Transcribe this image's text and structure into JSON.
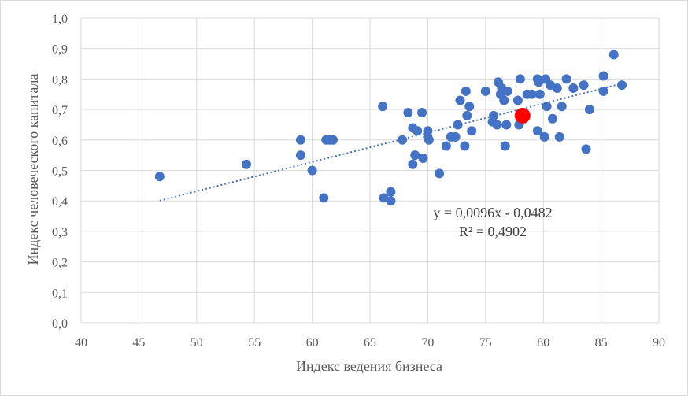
{
  "chart_data": {
    "type": "scatter",
    "xlabel": "Индекс ведения бизнеса",
    "ylabel": "Индекс человеческого капитала",
    "xlim": [
      40,
      90
    ],
    "ylim": [
      0,
      1
    ],
    "x_ticks": [
      "40",
      "45",
      "50",
      "55",
      "60",
      "65",
      "70",
      "75",
      "80",
      "85",
      "90"
    ],
    "y_ticks": [
      "0,0",
      "0,1",
      "0,2",
      "0,3",
      "0,4",
      "0,5",
      "0,6",
      "0,7",
      "0,8",
      "0,9",
      "1,0"
    ],
    "grid": true,
    "colors": {
      "points": "#4472c4",
      "highlight": "#ff0000",
      "trendline": "#4472c4",
      "grid": "#d9d9d9"
    },
    "points": [
      [
        46.8,
        0.48
      ],
      [
        54.3,
        0.52
      ],
      [
        59.0,
        0.6
      ],
      [
        59.0,
        0.55
      ],
      [
        60.0,
        0.5
      ],
      [
        61.0,
        0.41
      ],
      [
        61.2,
        0.6
      ],
      [
        61.5,
        0.6
      ],
      [
        61.8,
        0.6
      ],
      [
        66.1,
        0.71
      ],
      [
        66.2,
        0.41
      ],
      [
        66.8,
        0.43
      ],
      [
        66.8,
        0.4
      ],
      [
        67.8,
        0.6
      ],
      [
        68.3,
        0.69
      ],
      [
        68.7,
        0.64
      ],
      [
        68.7,
        0.52
      ],
      [
        68.9,
        0.55
      ],
      [
        69.1,
        0.63
      ],
      [
        69.5,
        0.69
      ],
      [
        69.6,
        0.54
      ],
      [
        70.0,
        0.63
      ],
      [
        70.0,
        0.61
      ],
      [
        70.1,
        0.6
      ],
      [
        71.0,
        0.49
      ],
      [
        71.6,
        0.58
      ],
      [
        72.0,
        0.61
      ],
      [
        72.4,
        0.61
      ],
      [
        72.6,
        0.65
      ],
      [
        72.8,
        0.73
      ],
      [
        73.2,
        0.58
      ],
      [
        73.3,
        0.76
      ],
      [
        73.4,
        0.68
      ],
      [
        73.6,
        0.71
      ],
      [
        73.8,
        0.63
      ],
      [
        75.0,
        0.76
      ],
      [
        75.6,
        0.66
      ],
      [
        75.7,
        0.68
      ],
      [
        76.0,
        0.65
      ],
      [
        76.1,
        0.79
      ],
      [
        76.3,
        0.75
      ],
      [
        76.4,
        0.77
      ],
      [
        76.6,
        0.73
      ],
      [
        76.7,
        0.58
      ],
      [
        76.8,
        0.65
      ],
      [
        76.9,
        0.76
      ],
      [
        77.8,
        0.73
      ],
      [
        77.9,
        0.65
      ],
      [
        78.0,
        0.8
      ],
      [
        78.3,
        0.67
      ],
      [
        78.6,
        0.75
      ],
      [
        79.0,
        0.75
      ],
      [
        79.5,
        0.63
      ],
      [
        79.5,
        0.8
      ],
      [
        79.6,
        0.79
      ],
      [
        79.7,
        0.75
      ],
      [
        80.1,
        0.61
      ],
      [
        80.2,
        0.8
      ],
      [
        80.3,
        0.71
      ],
      [
        80.6,
        0.78
      ],
      [
        80.8,
        0.67
      ],
      [
        81.2,
        0.77
      ],
      [
        81.4,
        0.61
      ],
      [
        81.6,
        0.71
      ],
      [
        82.0,
        0.8
      ],
      [
        82.6,
        0.77
      ],
      [
        83.5,
        0.78
      ],
      [
        83.7,
        0.57
      ],
      [
        84.0,
        0.7
      ],
      [
        85.2,
        0.81
      ],
      [
        85.2,
        0.76
      ],
      [
        86.1,
        0.88
      ],
      [
        86.8,
        0.78
      ]
    ],
    "highlight_point": [
      78.2,
      0.68
    ],
    "trendline": {
      "slope": 0.0096,
      "intercept": -0.0482,
      "x_range": [
        46.8,
        86.8
      ]
    },
    "equation_label": "y = 0,0096x - 0,0482",
    "r2_label": "R² = 0,4902"
  }
}
